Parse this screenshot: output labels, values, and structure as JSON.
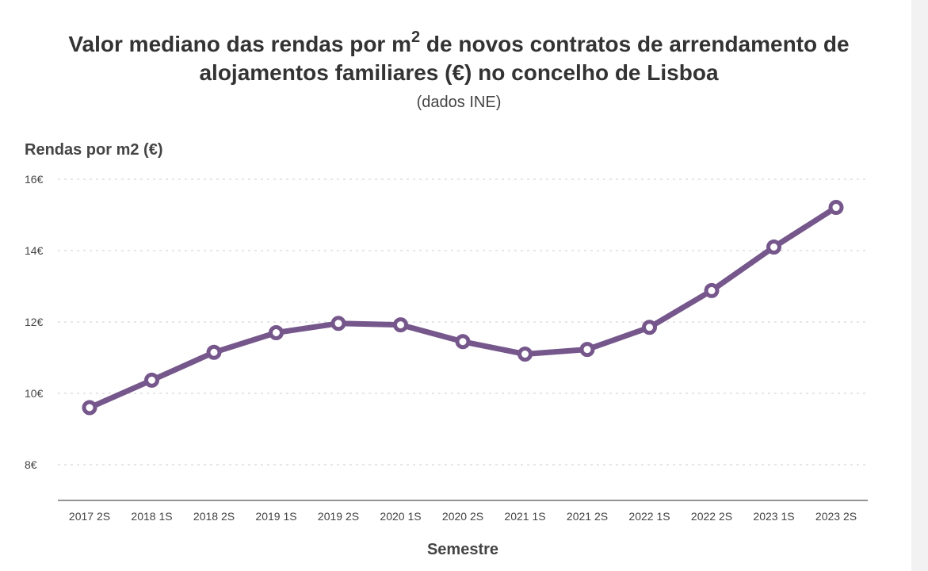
{
  "chart_data": {
    "type": "line",
    "title_part1": "Valor mediano das rendas por m",
    "title_sup": "2",
    "title_part2": " de novos contratos de arrendamento de",
    "title_line2": "alojamentos familiares (€) no concelho de Lisboa",
    "subtitle": "(dados INE)",
    "ylabel": "Rendas por m2 (€)",
    "xlabel": "Semestre",
    "categories": [
      "2017 2S",
      "2018 1S",
      "2018 2S",
      "2019 1S",
      "2019 2S",
      "2020 1S",
      "2020 2S",
      "2021 1S",
      "2021 2S",
      "2022 1S",
      "2022 2S",
      "2023 1S",
      "2023 2S"
    ],
    "series": [
      {
        "name": "Rendas por m2 (€)",
        "values": [
          9.6,
          10.37,
          11.15,
          11.7,
          11.96,
          11.92,
          11.45,
          11.1,
          11.23,
          11.85,
          12.88,
          14.1,
          15.21
        ]
      }
    ],
    "yticks": [
      {
        "value": 8,
        "label": "8€"
      },
      {
        "value": 10,
        "label": "10€"
      },
      {
        "value": 12,
        "label": "12€"
      },
      {
        "value": 14,
        "label": "14€"
      },
      {
        "value": 16,
        "label": "16€"
      }
    ],
    "ylim": [
      7,
      16
    ],
    "grid": true,
    "line_color": "#76578c"
  }
}
